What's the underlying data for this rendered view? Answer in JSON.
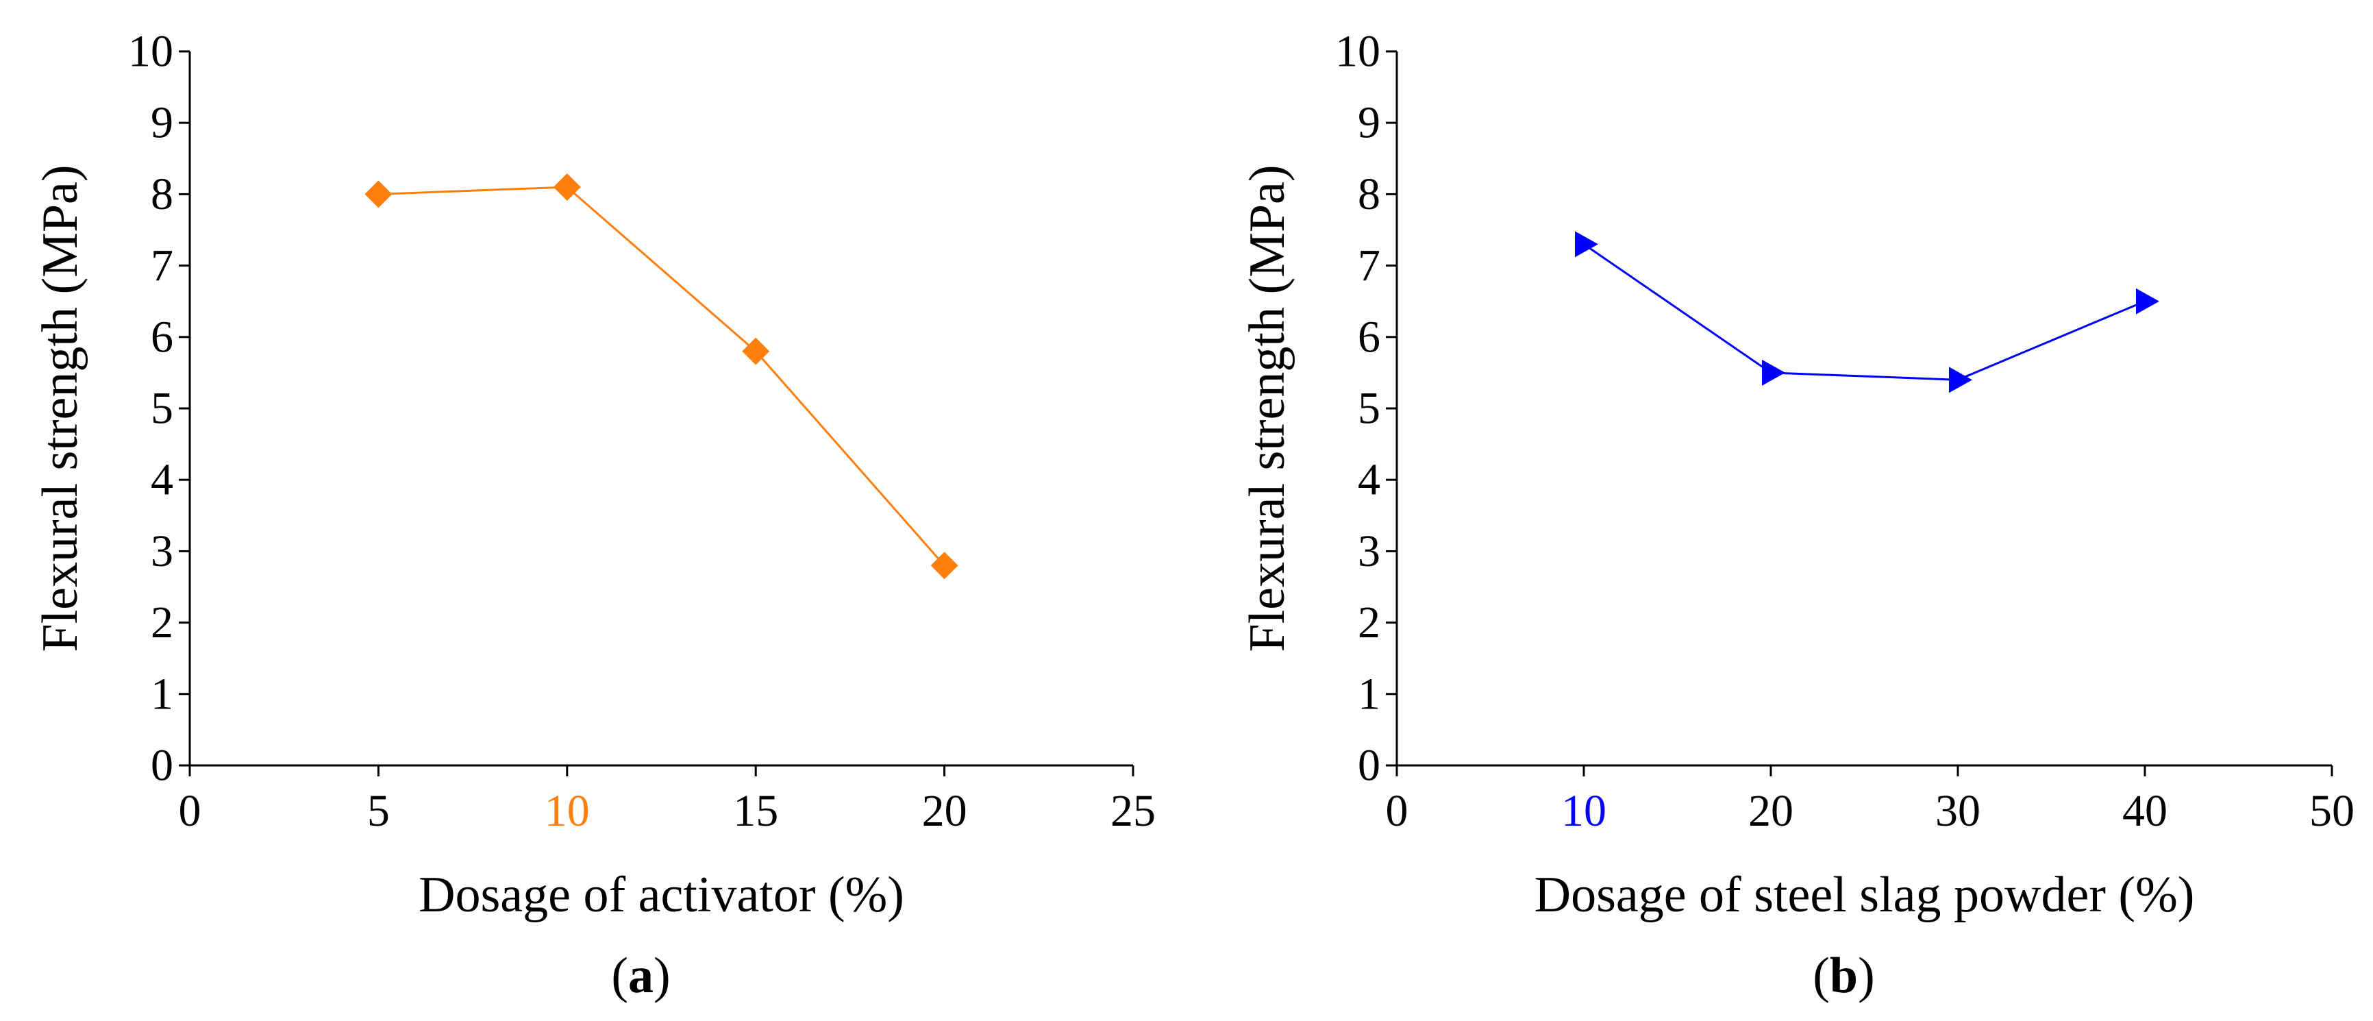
{
  "chart_data": [
    {
      "type": "line",
      "panel_label": "(a)",
      "panel_letter": "a",
      "xlabel": "Dosage of activator (%)",
      "ylabel": "Flexural strength (MPa)",
      "xlim": [
        0,
        25
      ],
      "ylim": [
        0,
        10
      ],
      "xticks": [
        0,
        5,
        10,
        15,
        20,
        25
      ],
      "yticks": [
        0,
        1,
        2,
        3,
        4,
        5,
        6,
        7,
        8,
        9,
        10
      ],
      "highlight_xtick": 10,
      "grid": false,
      "series": [
        {
          "name": "Flexural strength",
          "marker": "diamond",
          "color": "#FF7F0E",
          "x": [
            5,
            10,
            15,
            20
          ],
          "y": [
            8.0,
            8.1,
            5.8,
            2.8
          ]
        }
      ]
    },
    {
      "type": "line",
      "panel_label": "(b)",
      "panel_letter": "b",
      "xlabel": "Dosage of steel slag powder (%)",
      "ylabel": "Flexural strength (MPa)",
      "xlim": [
        0,
        50
      ],
      "ylim": [
        0,
        10
      ],
      "xticks": [
        0,
        10,
        20,
        30,
        40,
        50
      ],
      "yticks": [
        0,
        1,
        2,
        3,
        4,
        5,
        6,
        7,
        8,
        9,
        10
      ],
      "highlight_xtick": 10,
      "grid": false,
      "series": [
        {
          "name": "Flexural strength",
          "marker": "triangle-right",
          "color": "#0000FF",
          "x": [
            10,
            20,
            30,
            40
          ],
          "y": [
            7.3,
            5.5,
            5.4,
            6.5
          ]
        }
      ]
    }
  ]
}
